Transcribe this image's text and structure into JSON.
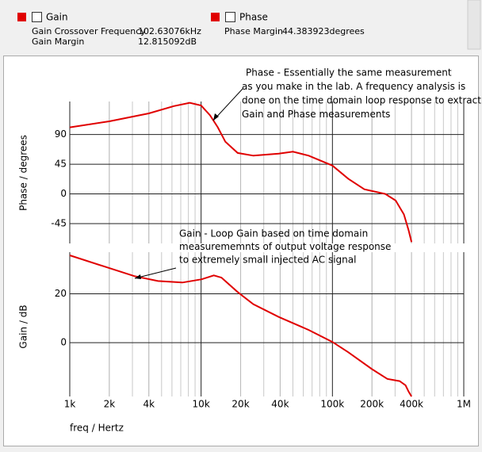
{
  "header": {
    "measures": [
      [
        {
          "label": "Gain Crossover Frequency",
          "value": "102.63076kHz"
        },
        {
          "label": "Gain Margin",
          "value": "12.815092dB"
        }
      ],
      [
        {
          "label": "Phase Margin",
          "value": "44.383923degrees"
        }
      ]
    ]
  },
  "chart_data": [
    {
      "type": "line",
      "ylabel": "Phase / degrees",
      "log_x": true,
      "xlim": [
        1000,
        1000000
      ],
      "ylim": [
        -75,
        140
      ],
      "yticks": [
        -45,
        0,
        45,
        90
      ],
      "grid": true,
      "annotation": [
        "Phase - Essentially the same measurement",
        "as you make in the lab.  A frequency analysis is",
        "done on the time domain loop response to extract",
        "Gain and  Phase measurements"
      ],
      "x": [
        1000,
        2000,
        4000,
        6200,
        8200,
        10000,
        11700,
        13400,
        15300,
        19000,
        25000,
        39000,
        50000,
        66000,
        100000,
        132000,
        175000,
        253000,
        303000,
        350000,
        380000,
        400000
      ],
      "series": [
        {
          "name": "Phase",
          "color": "#e00000",
          "values": [
            100.8,
            110,
            122,
            133,
            138,
            134,
            119,
            101,
            79,
            62,
            58,
            61,
            64,
            58,
            43,
            23,
            7,
            0,
            -10,
            -31,
            -55,
            -73
          ]
        }
      ]
    },
    {
      "type": "line",
      "ylabel": "Gain / dB",
      "xlabel": "freq / Hertz",
      "log_x": true,
      "xlim": [
        1000,
        1000000
      ],
      "xticks": [
        {
          "value": 1000,
          "label": "1k"
        },
        {
          "value": 2000,
          "label": "2k"
        },
        {
          "value": 4000,
          "label": "4k"
        },
        {
          "value": 10000,
          "label": "10k"
        },
        {
          "value": 20000,
          "label": "20k"
        },
        {
          "value": 40000,
          "label": "40k"
        },
        {
          "value": 100000,
          "label": "100k"
        },
        {
          "value": 200000,
          "label": "200k"
        },
        {
          "value": 400000,
          "label": "400k"
        },
        {
          "value": 1000000,
          "label": "1M"
        }
      ],
      "ylim": [
        -22,
        37
      ],
      "yticks": [
        0,
        20
      ],
      "grid": true,
      "annotation": [
        "Gain -  Loop Gain based on time domain",
        "measurememnts of output voltage response",
        "to extremely small injected AC signal"
      ],
      "x": [
        1000,
        2000,
        3100,
        4700,
        7200,
        10100,
        12500,
        14300,
        19000,
        25000,
        39000,
        66000,
        100000,
        132000,
        200000,
        262000,
        325000,
        360000,
        380000,
        400000
      ],
      "series": [
        {
          "name": "Gain",
          "color": "#e00000",
          "values": [
            35.7,
            30.5,
            27.2,
            25.2,
            24.6,
            25.9,
            27.5,
            26.6,
            20.7,
            15.7,
            10.5,
            5.2,
            0.3,
            -3.9,
            -10.8,
            -14.8,
            -15.7,
            -17.4,
            -20,
            -22
          ]
        }
      ]
    }
  ]
}
